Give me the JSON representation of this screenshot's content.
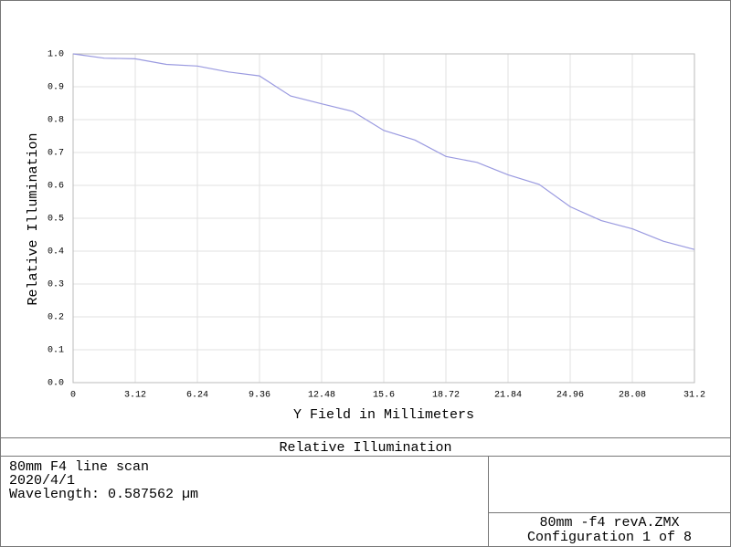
{
  "chart_data": {
    "type": "line",
    "title": "Relative Illumination",
    "x_label": "Y Field in Millimeters",
    "y_label": "Relative Illumination",
    "x": [
      0,
      1.56,
      3.12,
      4.68,
      6.24,
      7.8,
      9.36,
      10.92,
      12.48,
      14.04,
      15.6,
      17.16,
      18.72,
      20.28,
      21.84,
      23.4,
      24.96,
      26.52,
      28.08,
      29.64,
      31.2
    ],
    "series": [
      {
        "color": "#9a9ae0",
        "values": [
          1.0,
          0.987,
          0.985,
          0.968,
          0.963,
          0.945,
          0.933,
          0.872,
          0.848,
          0.825,
          0.767,
          0.738,
          0.688,
          0.67,
          0.632,
          0.603,
          0.535,
          0.493,
          0.468,
          0.43,
          0.405
        ]
      }
    ],
    "xlim": [
      0,
      31.2
    ],
    "xticks": [
      0,
      3.12,
      6.24,
      9.36,
      12.48,
      15.6,
      18.72,
      21.84,
      24.96,
      28.08,
      31.2
    ],
    "ylim": [
      0,
      1
    ],
    "yticks": [
      {
        "value": 0,
        "label": "0.0"
      },
      0.1,
      0.2,
      0.3,
      0.4,
      0.5,
      0.6,
      0.7,
      0.8,
      0.9,
      {
        "value": 1,
        "label": "1.0"
      }
    ],
    "grid": true
  },
  "info": {
    "lines": [
      "80mm F4 line scan",
      "2020/4/1",
      "Wavelength: 0.587562 µm"
    ],
    "file": "80mm -f4 revA.ZMX",
    "config": "Configuration 1 of 8"
  }
}
